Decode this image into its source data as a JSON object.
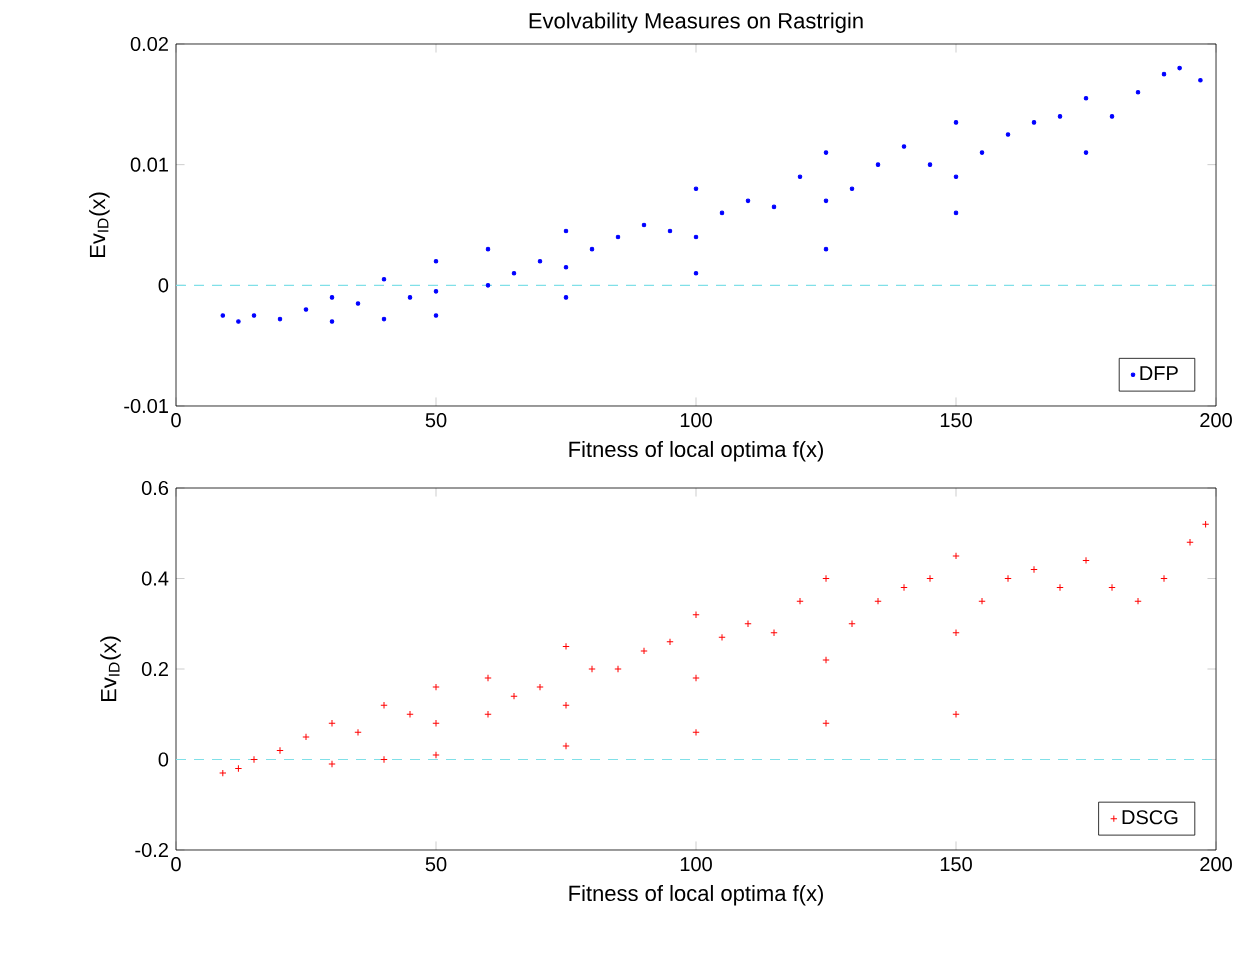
{
  "chart_data": [
    {
      "type": "scatter",
      "title": "Evolvability Measures on Rastrigin",
      "xlabel": "Fitness of local optima f(x)",
      "ylabel": "Ev$_{ID}$(x)",
      "xlim": [
        0,
        200
      ],
      "ylim": [
        -0.01,
        0.02
      ],
      "xticks": [
        0,
        50,
        100,
        150,
        200
      ],
      "yticks": [
        -0.01,
        0,
        0.01,
        0.02
      ],
      "legend": "bottom right",
      "grid": false,
      "ref_lines": [
        {
          "axis": "y",
          "value": 0,
          "color": "#80e0e8",
          "line_style": "dashed"
        }
      ],
      "series": [
        {
          "name": "DFP",
          "color": "#0000ff",
          "marker": "circle",
          "x": [
            9,
            12,
            15,
            20,
            25,
            30,
            30,
            35,
            40,
            40,
            45,
            50,
            50,
            50,
            60,
            60,
            65,
            70,
            75,
            75,
            75,
            80,
            85,
            90,
            95,
            100,
            100,
            100,
            105,
            110,
            115,
            120,
            125,
            125,
            125,
            130,
            135,
            140,
            145,
            150,
            150,
            150,
            155,
            160,
            165,
            170,
            175,
            175,
            180,
            185,
            190,
            193,
            197
          ],
          "values": [
            -0.0025,
            -0.003,
            -0.0025,
            -0.0028,
            -0.002,
            -0.003,
            -0.001,
            -0.0015,
            -0.0028,
            0.0005,
            -0.001,
            -0.0025,
            -0.0005,
            0.002,
            0.0,
            0.003,
            0.001,
            0.002,
            -0.001,
            0.0015,
            0.0045,
            0.003,
            0.004,
            0.005,
            0.0045,
            0.001,
            0.004,
            0.008,
            0.006,
            0.007,
            0.0065,
            0.009,
            0.003,
            0.007,
            0.011,
            0.008,
            0.01,
            0.0115,
            0.01,
            0.006,
            0.009,
            0.0135,
            0.011,
            0.0125,
            0.0135,
            0.014,
            0.011,
            0.0155,
            0.014,
            0.016,
            0.0175,
            0.018,
            0.017
          ]
        }
      ]
    },
    {
      "type": "scatter",
      "xlabel": "Fitness of local optima f(x)",
      "ylabel": "Ev$_{ID}$(x)",
      "xlim": [
        0,
        200
      ],
      "ylim": [
        -0.2,
        0.6
      ],
      "xticks": [
        0,
        50,
        100,
        150,
        200
      ],
      "yticks": [
        -0.2,
        0,
        0.2,
        0.4,
        0.6
      ],
      "legend": "bottom right",
      "grid": false,
      "ref_lines": [
        {
          "axis": "y",
          "value": 0,
          "color": "#80e0e8",
          "line_style": "dashed"
        }
      ],
      "series": [
        {
          "name": "DSCG",
          "color": "#ff0000",
          "marker": "cross",
          "x": [
            9,
            12,
            15,
            20,
            25,
            30,
            30,
            35,
            40,
            40,
            45,
            50,
            50,
            50,
            60,
            60,
            65,
            70,
            75,
            75,
            75,
            80,
            85,
            90,
            95,
            100,
            100,
            100,
            105,
            110,
            115,
            120,
            125,
            125,
            125,
            130,
            135,
            140,
            145,
            150,
            150,
            150,
            155,
            160,
            165,
            170,
            175,
            180,
            185,
            190,
            195,
            198
          ],
          "values": [
            -0.03,
            -0.02,
            0.0,
            0.02,
            0.05,
            -0.01,
            0.08,
            0.06,
            0.0,
            0.12,
            0.1,
            0.01,
            0.08,
            0.16,
            0.1,
            0.18,
            0.14,
            0.16,
            0.03,
            0.12,
            0.25,
            0.2,
            0.2,
            0.24,
            0.26,
            0.06,
            0.18,
            0.32,
            0.27,
            0.3,
            0.28,
            0.35,
            0.08,
            0.22,
            0.4,
            0.3,
            0.35,
            0.38,
            0.4,
            0.1,
            0.28,
            0.45,
            0.35,
            0.4,
            0.42,
            0.38,
            0.44,
            0.38,
            0.35,
            0.4,
            0.48,
            0.52
          ]
        }
      ]
    }
  ]
}
